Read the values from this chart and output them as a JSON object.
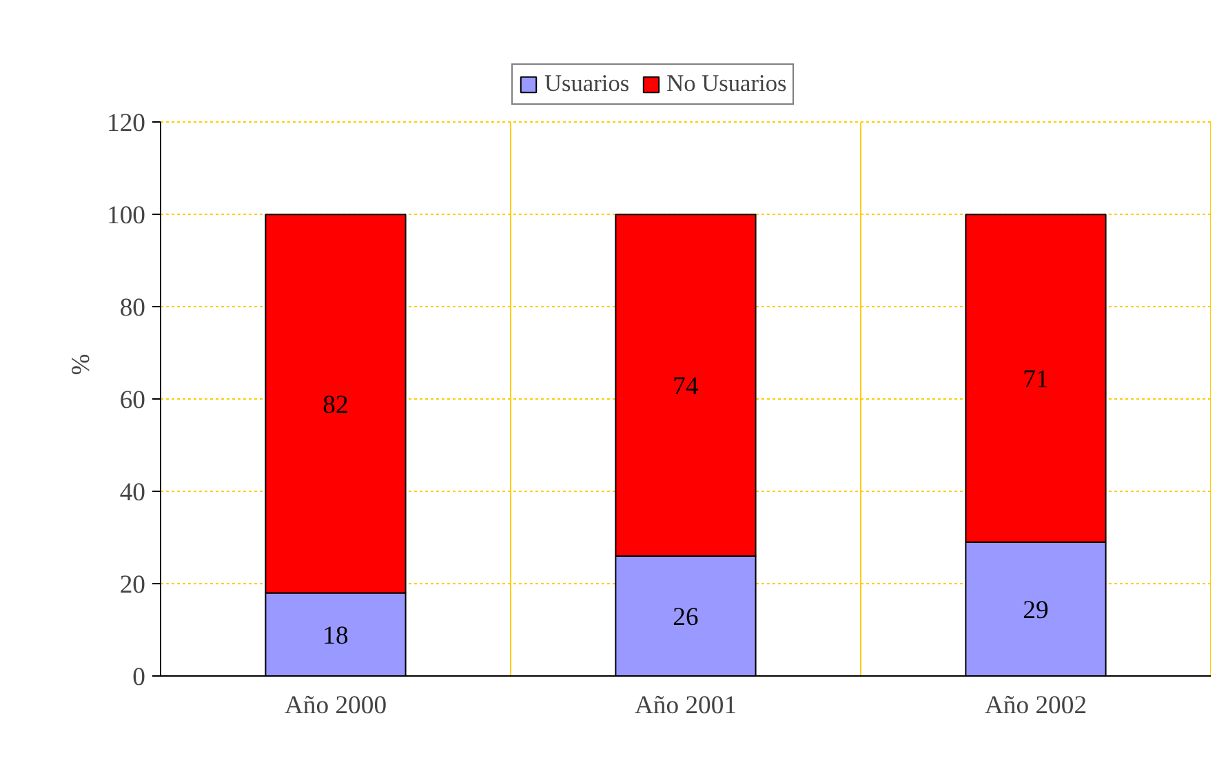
{
  "chart_data": {
    "type": "bar",
    "stacked": true,
    "ylabel": "%",
    "categories": [
      "Año 2000",
      "Año 2001",
      "Año 2002"
    ],
    "series": [
      {
        "name": "Usuarios",
        "color": "#9999ff",
        "values": [
          18,
          26,
          29
        ]
      },
      {
        "name": "No Usuarios",
        "color": "#ff0000",
        "values": [
          82,
          74,
          71
        ]
      }
    ],
    "ylim": [
      0,
      120
    ],
    "yticks": [
      0,
      20,
      40,
      60,
      80,
      100,
      120
    ],
    "grid": true,
    "legend": "top",
    "data_labels": true
  }
}
